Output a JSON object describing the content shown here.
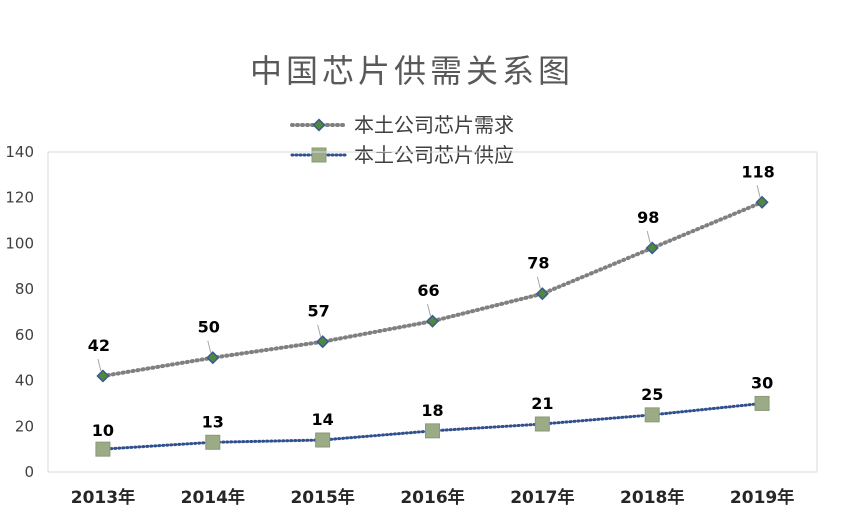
{
  "chart_data": {
    "type": "line",
    "title": "中国芯片供需关系图",
    "categories": [
      "2013年",
      "2014年",
      "2015年",
      "2016年",
      "2017年",
      "2018年",
      "2019年"
    ],
    "ylim": [
      0,
      140
    ],
    "yticks": [
      0,
      20,
      40,
      60,
      80,
      100,
      120,
      140
    ],
    "ytick_labels": [
      "0",
      "20",
      "40",
      "60",
      "80",
      "100",
      "120",
      "140"
    ],
    "grid": false,
    "legend_position": "top",
    "series": [
      {
        "name": "本土公司芯片需求",
        "values": [
          42,
          50,
          57,
          66,
          78,
          98,
          118
        ],
        "data_labels": [
          "42",
          "50",
          "57",
          "66",
          "78",
          "98",
          "118"
        ],
        "line_color": "#808080",
        "marker": "diamond",
        "marker_fill": "#4e8a3a",
        "marker_stroke": "#3b5a8f"
      },
      {
        "name": "本土公司芯片供应",
        "values": [
          10,
          13,
          14,
          18,
          21,
          25,
          30
        ],
        "data_labels": [
          "10",
          "13",
          "14",
          "18",
          "21",
          "25",
          "30"
        ],
        "line_color": "#2f4f8f",
        "marker": "square",
        "marker_fill": "#9aab86",
        "marker_stroke": "#8a9a78"
      }
    ]
  }
}
